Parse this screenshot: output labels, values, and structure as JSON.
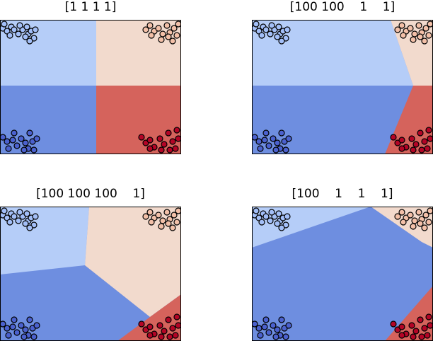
{
  "chart_data": [
    {
      "type": "scatter",
      "title": "[1 1 1 1]",
      "background": "decision-regions",
      "axes": "no ticks",
      "region_colors": [
        "#b5cdf8",
        "#f2dacd",
        "#6e8ee0",
        "#d5635c"
      ],
      "point_colors": [
        "#a3bff8",
        "#f3c0a8",
        "#4b61ce",
        "#b40426"
      ]
    },
    {
      "type": "scatter",
      "title": "[100 100    1    1]",
      "background": "decision-regions",
      "axes": "no ticks",
      "region_colors": [
        "#b5cdf8",
        "#f2dacd",
        "#6e8ee0",
        "#d5635c"
      ],
      "point_colors": [
        "#a3bff8",
        "#f3c0a8",
        "#4b61ce",
        "#b40426"
      ]
    },
    {
      "type": "scatter",
      "title": "[100 100 100    1]",
      "background": "decision-regions",
      "axes": "no ticks",
      "region_colors": [
        "#b5cdf8",
        "#f2dacd",
        "#6e8ee0",
        "#d5635c"
      ],
      "point_colors": [
        "#a3bff8",
        "#f3c0a8",
        "#4b61ce",
        "#b40426"
      ]
    },
    {
      "type": "scatter",
      "title": "[100    1    1    1]",
      "background": "decision-regions",
      "axes": "no ticks",
      "region_colors": [
        "#b5cdf8",
        "#f2dacd",
        "#6e8ee0",
        "#d5635c"
      ],
      "point_colors": [
        "#a3bff8",
        "#f3c0a8",
        "#4b61ce",
        "#b40426"
      ]
    }
  ]
}
